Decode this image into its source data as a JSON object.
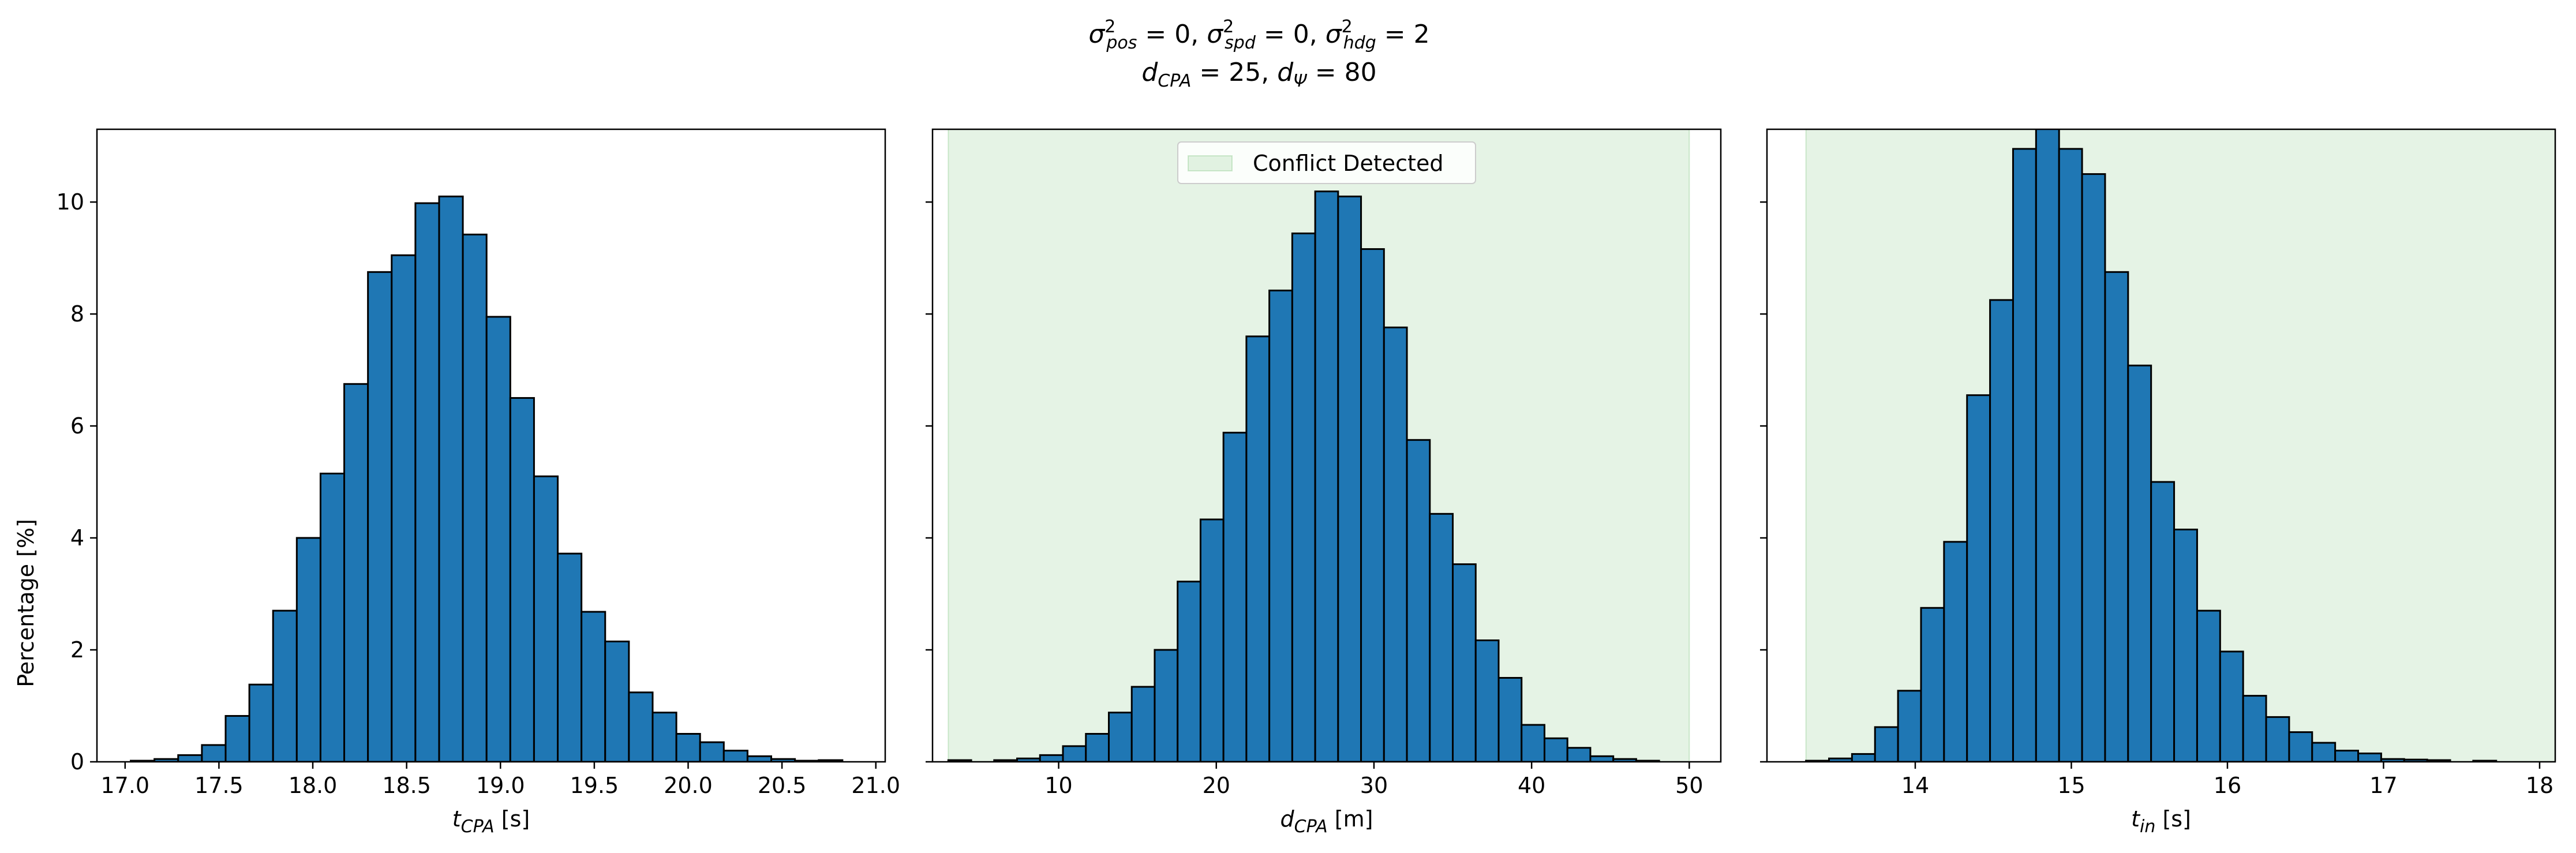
{
  "figure": {
    "title_line1": "σ²ₚₒₛ = 0, σ²ₛₚd = 0, σ²ₕdg = 2",
    "title_line1_parts": [
      {
        "base": "σ",
        "sup": "2",
        "sub": "pos",
        "rest": " = 0, "
      },
      {
        "base": "σ",
        "sup": "2",
        "sub": "spd",
        "rest": " = 0, "
      },
      {
        "base": "σ",
        "sup": "2",
        "sub": "hdg",
        "rest": " = 2"
      }
    ],
    "title_line2_parts": [
      {
        "base": "d",
        "sub": "CPA",
        "rest": " = 25, "
      },
      {
        "base": "d",
        "sub": "Ψ",
        "rest": " = 80"
      }
    ],
    "ylabel": "Percentage [%]",
    "bar_color": "#1f77b4",
    "edge_color": "#000000",
    "shade_color": "#2ca02c",
    "legend_label": "Conflict Detected"
  },
  "chart_data": [
    {
      "type": "bar",
      "xlabel": {
        "base": "t",
        "sub": "CPA",
        "rest": " [s]"
      },
      "ylabel": "Percentage [%]",
      "xlim": [
        16.85,
        21.05
      ],
      "ylim": [
        0,
        11.3
      ],
      "xticks": [
        "17.0",
        "17.5",
        "18.0",
        "18.5",
        "19.0",
        "19.5",
        "20.0",
        "20.5",
        "21.0"
      ],
      "xtick_values": [
        17.0,
        17.5,
        18.0,
        18.5,
        19.0,
        19.5,
        20.0,
        20.5,
        21.0
      ],
      "yticks": [
        "0",
        "2",
        "4",
        "6",
        "8",
        "10"
      ],
      "ytick_values": [
        0,
        2,
        4,
        6,
        8,
        10
      ],
      "bin_start": 17.03,
      "bin_width": 0.1264,
      "values": [
        0.02,
        0.05,
        0.12,
        0.3,
        0.82,
        1.38,
        2.7,
        4.0,
        5.15,
        6.75,
        8.75,
        9.05,
        9.98,
        10.1,
        9.42,
        7.95,
        6.5,
        5.1,
        3.72,
        2.68,
        2.15,
        1.24,
        0.88,
        0.5,
        0.35,
        0.2,
        0.1,
        0.05,
        0.02,
        0.03
      ]
    },
    {
      "type": "bar",
      "xlabel": {
        "base": "d",
        "sub": "CPA",
        "rest": " [m]"
      },
      "xlim": [
        2.0,
        52.0
      ],
      "ylim": [
        0,
        11.3
      ],
      "xticks": [
        "10",
        "20",
        "30",
        "40",
        "50"
      ],
      "xtick_values": [
        10,
        20,
        30,
        40,
        50
      ],
      "yticks": [
        "0",
        "2",
        "4",
        "6",
        "8",
        "10"
      ],
      "ytick_values": [
        0,
        2,
        4,
        6,
        8,
        10
      ],
      "shade": [
        3.0,
        50.0
      ],
      "legend": "Conflict Detected",
      "bin_start": 3.0,
      "bin_width": 1.4545,
      "values": [
        0.03,
        0.0,
        0.03,
        0.06,
        0.12,
        0.28,
        0.5,
        0.88,
        1.34,
        2.0,
        3.22,
        4.33,
        5.88,
        7.6,
        8.42,
        9.44,
        10.19,
        10.1,
        9.16,
        7.76,
        5.75,
        4.43,
        3.53,
        2.17,
        1.5,
        0.66,
        0.42,
        0.25,
        0.1,
        0.05,
        0.02
      ]
    },
    {
      "type": "bar",
      "xlabel": {
        "base": "t",
        "sub": "in",
        "rest": " [s]"
      },
      "xlim": [
        13.05,
        18.1
      ],
      "ylim": [
        0,
        11.3
      ],
      "xticks": [
        "14",
        "15",
        "16",
        "17",
        "18"
      ],
      "xtick_values": [
        14,
        15,
        16,
        17,
        18
      ],
      "yticks": [
        "0",
        "2",
        "4",
        "6",
        "8",
        "10"
      ],
      "ytick_values": [
        0,
        2,
        4,
        6,
        8,
        10
      ],
      "shade": [
        13.3,
        18.1
      ],
      "bin_start": 13.3,
      "bin_width": 0.1474,
      "values": [
        0.02,
        0.06,
        0.14,
        0.62,
        1.27,
        2.75,
        3.93,
        6.55,
        8.25,
        10.95,
        11.35,
        10.95,
        10.5,
        8.75,
        7.08,
        5.0,
        4.15,
        2.7,
        1.97,
        1.18,
        0.8,
        0.53,
        0.34,
        0.2,
        0.15,
        0.05,
        0.04,
        0.03,
        0.0,
        0.02
      ]
    }
  ]
}
